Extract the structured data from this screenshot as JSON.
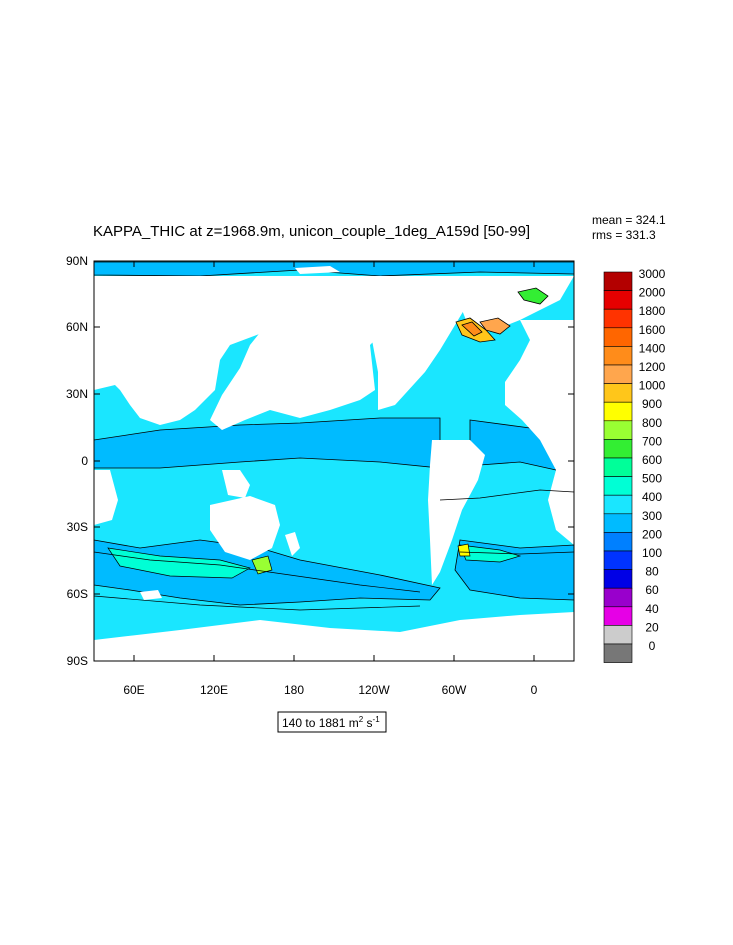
{
  "title": "KAPPA_THIC at z=1968.9m, unicon_couple_1deg_A159d [50-99]",
  "stats": {
    "mean": "mean = 324.1",
    "rms": "rms = 331.3"
  },
  "axes": {
    "y_ticks": [
      "90N",
      "60N",
      "30N",
      "0",
      "30S",
      "60S",
      "90S"
    ],
    "x_ticks": [
      "60E",
      "120E",
      "180",
      "120W",
      "60W",
      "0"
    ]
  },
  "range_label": {
    "prefix": "140 to 1881 m",
    "sup1": "2",
    "mid": " s",
    "sup2": "-1"
  },
  "colorbar": {
    "labels": [
      "3000",
      "2000",
      "1800",
      "1600",
      "1400",
      "1200",
      "1000",
      "900",
      "800",
      "700",
      "600",
      "500",
      "400",
      "300",
      "200",
      "100",
      "80",
      "60",
      "40",
      "20",
      "0"
    ],
    "colors": [
      "#b30000",
      "#e60000",
      "#ff3300",
      "#ff6600",
      "#ff8c1a",
      "#ffa64d",
      "#ffc61a",
      "#ffff00",
      "#99ff33",
      "#33ee33",
      "#00ff99",
      "#00ffd5",
      "#1ae6ff",
      "#00bbff",
      "#0080ff",
      "#0033ff",
      "#0000e6",
      "#9900cc",
      "#e600e6",
      "#cccccc",
      "#777777"
    ]
  },
  "colors": {
    "ocean_main": "#1ae6ff",
    "ocean_mid": "#00bbff",
    "land": "#ffffff"
  }
}
